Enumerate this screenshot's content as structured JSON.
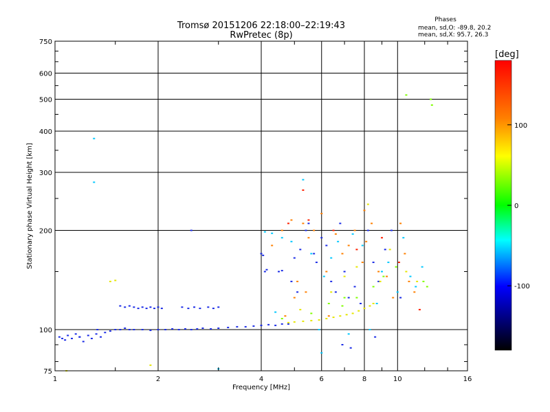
{
  "chart_data": {
    "type": "scatter",
    "title": "Tromsø 20151206 22:18:00–22:19:43",
    "subtitle": "RwPretec (8p)",
    "xlabel": "Frequency [MHz]",
    "ylabel": "Stationary phase Virtual Height [km]",
    "xscale": "log",
    "yscale": "log",
    "xlim": [
      1,
      16
    ],
    "ylim": [
      75,
      750
    ],
    "x_ticks": [
      1,
      2,
      4,
      6,
      8,
      10,
      16
    ],
    "y_ticks": [
      75,
      100,
      200,
      300,
      400,
      500,
      600,
      750
    ],
    "grid": true,
    "phases_box": {
      "title": "Phases",
      "line1": "mean, sd,O: -89.8, 20.2",
      "line2": "mean, sd,X:  95.7, 26.3"
    },
    "colorbar": {
      "label": "[deg]",
      "range": [
        -180,
        180
      ],
      "ticks": [
        100,
        0,
        -100
      ],
      "colors": [
        "#ff0000",
        "#ff8000",
        "#ffff00",
        "#00ff00",
        "#00ffff",
        "#0000ff",
        "#000000"
      ]
    },
    "series": [
      {
        "color": "#1a2be6",
        "points": [
          [
            1.03,
            95
          ],
          [
            1.05,
            94
          ],
          [
            1.07,
            93
          ],
          [
            1.09,
            96
          ],
          [
            1.12,
            94
          ],
          [
            1.15,
            97
          ],
          [
            1.18,
            95
          ],
          [
            1.21,
            92
          ],
          [
            1.25,
            96
          ],
          [
            1.28,
            94
          ],
          [
            1.32,
            97
          ],
          [
            1.36,
            95
          ],
          [
            1.4,
            98
          ],
          [
            1.45,
            99
          ],
          [
            1.5,
            100
          ],
          [
            1.55,
            100
          ],
          [
            1.6,
            101
          ],
          [
            1.65,
            100
          ],
          [
            1.7,
            100
          ],
          [
            1.8,
            100
          ],
          [
            1.9,
            99.5
          ],
          [
            2.0,
            100
          ],
          [
            2.1,
            100
          ],
          [
            2.2,
            100.5
          ],
          [
            2.3,
            100
          ],
          [
            2.4,
            100.5
          ],
          [
            2.5,
            100
          ],
          [
            2.6,
            100.5
          ],
          [
            2.7,
            101
          ],
          [
            2.85,
            100.5
          ],
          [
            3.0,
            101
          ],
          [
            3.2,
            101.5
          ],
          [
            3.4,
            102
          ],
          [
            3.6,
            102
          ],
          [
            3.8,
            102.5
          ],
          [
            4.0,
            103
          ],
          [
            4.2,
            103.5
          ],
          [
            4.4,
            103
          ],
          [
            4.6,
            104
          ],
          [
            4.8,
            104
          ],
          [
            1.55,
            118
          ],
          [
            1.6,
            117
          ],
          [
            1.65,
            118
          ],
          [
            1.7,
            117
          ],
          [
            1.75,
            116
          ],
          [
            1.8,
            117
          ],
          [
            1.85,
            116
          ],
          [
            1.9,
            117
          ],
          [
            1.95,
            116
          ],
          [
            2.0,
            117
          ],
          [
            2.05,
            116
          ],
          [
            2.35,
            117
          ],
          [
            2.45,
            116
          ],
          [
            2.55,
            117
          ],
          [
            2.65,
            116
          ],
          [
            2.8,
            117
          ],
          [
            2.9,
            116
          ],
          [
            3.0,
            117
          ],
          [
            4.0,
            170
          ],
          [
            4.05,
            168
          ],
          [
            4.1,
            150
          ],
          [
            4.15,
            152
          ],
          [
            4.5,
            150
          ],
          [
            4.6,
            151
          ],
          [
            5.0,
            165
          ],
          [
            5.2,
            175
          ],
          [
            5.4,
            200
          ],
          [
            5.5,
            210
          ],
          [
            5.7,
            170
          ],
          [
            5.8,
            160
          ],
          [
            6.0,
            190
          ],
          [
            6.2,
            180
          ],
          [
            6.4,
            140
          ],
          [
            6.6,
            130
          ],
          [
            6.8,
            210
          ],
          [
            7.0,
            150
          ],
          [
            7.2,
            125
          ],
          [
            7.5,
            135
          ],
          [
            7.8,
            120
          ],
          [
            8.2,
            200
          ],
          [
            8.5,
            160
          ],
          [
            8.8,
            140
          ],
          [
            9.2,
            175
          ],
          [
            9.6,
            200
          ],
          [
            10.2,
            125
          ],
          [
            6.9,
            90
          ],
          [
            7.3,
            88
          ],
          [
            8.6,
            95
          ],
          [
            1.33,
            100
          ],
          [
            1.18,
            95
          ],
          [
            2.5,
            200
          ],
          [
            5.1,
            130
          ],
          [
            4.9,
            140
          ]
        ]
      },
      {
        "color": "#ff8000",
        "points": [
          [
            4.3,
            180
          ],
          [
            4.6,
            200
          ],
          [
            4.9,
            215
          ],
          [
            5.1,
            140
          ],
          [
            5.3,
            210
          ],
          [
            5.5,
            190
          ],
          [
            5.7,
            200
          ],
          [
            6.0,
            225
          ],
          [
            6.2,
            150
          ],
          [
            6.6,
            195
          ],
          [
            6.9,
            170
          ],
          [
            7.2,
            180
          ],
          [
            7.5,
            200
          ],
          [
            7.9,
            160
          ],
          [
            8.1,
            185
          ],
          [
            8.4,
            210
          ],
          [
            8.8,
            150
          ],
          [
            9.3,
            145
          ],
          [
            9.7,
            125
          ],
          [
            10.2,
            210
          ],
          [
            10.5,
            170
          ],
          [
            10.8,
            140
          ],
          [
            11.2,
            130
          ],
          [
            4.7,
            110
          ],
          [
            5.0,
            125
          ],
          [
            5.4,
            130
          ],
          [
            6.3,
            110
          ],
          [
            8.0,
            230
          ]
        ]
      },
      {
        "color": "#e6e600",
        "points": [
          [
            4.8,
            105
          ],
          [
            5.0,
            105.5
          ],
          [
            5.3,
            106
          ],
          [
            5.6,
            106.5
          ],
          [
            5.9,
            107
          ],
          [
            6.2,
            108
          ],
          [
            6.5,
            109
          ],
          [
            6.8,
            110
          ],
          [
            7.1,
            111
          ],
          [
            7.4,
            112
          ],
          [
            7.7,
            114
          ],
          [
            8.0,
            116
          ],
          [
            8.3,
            118
          ],
          [
            8.5,
            120
          ],
          [
            5.2,
            115
          ],
          [
            6.4,
            130
          ],
          [
            7.0,
            145
          ],
          [
            7.6,
            155
          ],
          [
            8.2,
            240
          ],
          [
            8.9,
            140
          ],
          [
            9.5,
            175
          ],
          [
            10.6,
            150
          ],
          [
            11.4,
            140
          ],
          [
            1.45,
            140
          ],
          [
            1.5,
            141
          ],
          [
            1.9,
            78
          ],
          [
            1.08,
            75
          ]
        ]
      },
      {
        "color": "#00c8ff",
        "points": [
          [
            1.3,
            380
          ],
          [
            1.3,
            280
          ],
          [
            4.1,
            198
          ],
          [
            4.3,
            196
          ],
          [
            4.6,
            190
          ],
          [
            4.9,
            185
          ],
          [
            5.3,
            285
          ],
          [
            5.6,
            170
          ],
          [
            6.1,
            145
          ],
          [
            6.4,
            165
          ],
          [
            6.7,
            185
          ],
          [
            7.4,
            195
          ],
          [
            7.9,
            180
          ],
          [
            8.3,
            100
          ],
          [
            8.7,
            120
          ],
          [
            9.0,
            150
          ],
          [
            9.4,
            160
          ],
          [
            10.0,
            130
          ],
          [
            10.4,
            190
          ],
          [
            10.9,
            145
          ],
          [
            11.3,
            135
          ],
          [
            11.8,
            155
          ],
          [
            4.4,
            113
          ],
          [
            5.9,
            100
          ],
          [
            7.2,
            97
          ],
          [
            3.0,
            76
          ],
          [
            6.0,
            85
          ]
        ]
      },
      {
        "color": "#80ff00",
        "points": [
          [
            4.6,
            108
          ],
          [
            5.6,
            112
          ],
          [
            6.3,
            120
          ],
          [
            6.9,
            118
          ],
          [
            7.6,
            125
          ],
          [
            8.5,
            135
          ],
          [
            9.1,
            145
          ],
          [
            9.9,
            155
          ],
          [
            11.9,
            140
          ],
          [
            12.2,
            135
          ],
          [
            10.6,
            515
          ],
          [
            12.5,
            500
          ],
          [
            12.6,
            480
          ],
          [
            7.0,
            125
          ]
        ]
      },
      {
        "color": "#ff2000",
        "points": [
          [
            5.3,
            265
          ],
          [
            5.5,
            215
          ],
          [
            4.8,
            210
          ],
          [
            6.5,
            200
          ],
          [
            7.6,
            175
          ],
          [
            9.0,
            190
          ],
          [
            10.1,
            160
          ],
          [
            11.6,
            115
          ]
        ]
      }
    ]
  }
}
